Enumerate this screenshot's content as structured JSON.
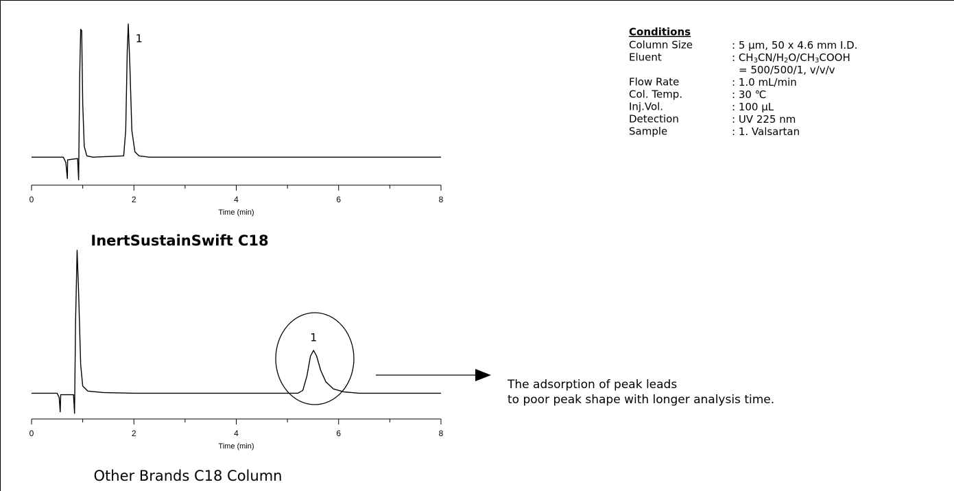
{
  "chart_data": [
    {
      "type": "line",
      "title": "InertSustainSwift C18",
      "title_bold": true,
      "x_label": "Time (min)",
      "xlim": [
        0,
        8
      ],
      "xticks": [
        0,
        2,
        4,
        6,
        8
      ],
      "xticks_minor": [
        1,
        3,
        5,
        7
      ],
      "ylim": [
        -21,
        100
      ],
      "grid": false,
      "x": [
        0,
        0.62,
        0.67,
        0.7,
        0.705,
        0.9,
        0.92,
        0.94,
        0.96,
        0.98,
        1.0,
        1.03,
        1.08,
        1.2,
        1.8,
        1.84,
        1.87,
        1.89,
        1.92,
        1.96,
        2.02,
        2.1,
        2.3,
        8
      ],
      "series": [
        {
          "color": "#000000",
          "values": [
            0,
            0,
            -4,
            -16,
            -2,
            -1,
            -17,
            60,
            96,
            95,
            40,
            8,
            1,
            0,
            1,
            20,
            80,
            100,
            70,
            20,
            4,
            1,
            0,
            0
          ]
        }
      ],
      "peak_label": {
        "text": "1",
        "x": 2.1
      }
    },
    {
      "type": "line",
      "title": "Other Brands C18 Column",
      "title_bold": false,
      "x_label": "Time (min)",
      "xlim": [
        0,
        8
      ],
      "xticks": [
        0,
        2,
        4,
        6,
        8
      ],
      "xticks_minor": [
        1,
        3,
        5,
        7
      ],
      "ylim": [
        -18,
        100
      ],
      "grid": false,
      "x": [
        0,
        0.5,
        0.54,
        0.56,
        0.57,
        0.82,
        0.84,
        0.86,
        0.89,
        0.92,
        0.96,
        1.0,
        1.1,
        1.4,
        2,
        5.2,
        5.3,
        5.38,
        5.45,
        5.51,
        5.57,
        5.65,
        5.75,
        5.9,
        6.1,
        6.4,
        8
      ],
      "series": [
        {
          "color": "#000000",
          "values": [
            0,
            0,
            -3,
            -13,
            -1,
            -1,
            -14,
            50,
            100,
            70,
            20,
            5,
            1.5,
            0.5,
            0,
            0,
            2,
            12,
            26,
            30,
            26,
            16,
            8,
            3,
            1,
            0,
            0
          ]
        }
      ],
      "peak_label": {
        "text": "1",
        "x": 5.51
      }
    }
  ],
  "conditions": {
    "heading": "Conditions",
    "rows": [
      {
        "label": "Column Size",
        "lines": [
          [
            ": 5 µm, 50 x 4.6 mm I.D."
          ]
        ]
      },
      {
        "label": "Eluent",
        "lines": [
          [
            ": CH",
            "3",
            "CN/H",
            "2",
            "O/CH",
            "3",
            "COOH"
          ],
          [
            "= 500/500/1, v/v/v"
          ]
        ]
      },
      {
        "label": "Flow Rate",
        "lines": [
          [
            ": 1.0 mL/min"
          ]
        ]
      },
      {
        "label": "Col. Temp.",
        "lines": [
          [
            ": 30 ℃"
          ]
        ]
      },
      {
        "label": "Inj.Vol.",
        "lines": [
          [
            ": 100 µL"
          ]
        ]
      },
      {
        "label": "Detection",
        "lines": [
          [
            ": UV 225 nm"
          ]
        ]
      },
      {
        "label": "Sample",
        "lines": [
          [
            ": 1. Valsartan"
          ]
        ]
      }
    ]
  },
  "note": [
    "The adsorption of peak leads",
    "to poor peak shape with longer analysis time."
  ]
}
